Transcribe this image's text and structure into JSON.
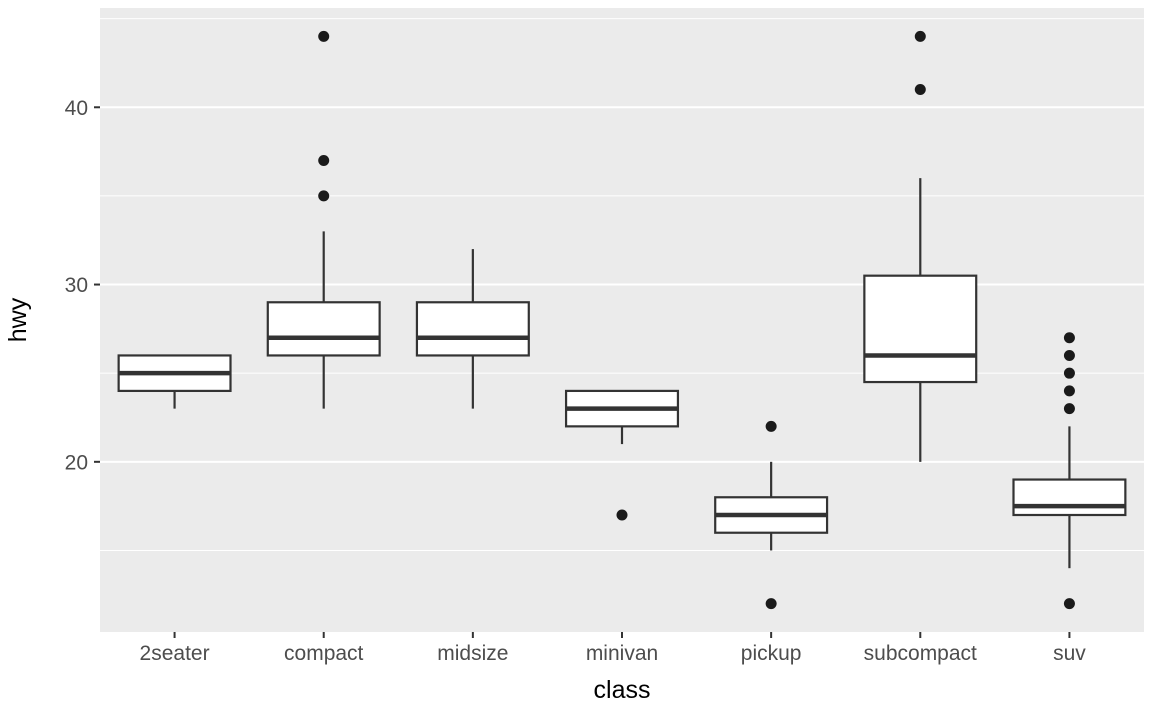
{
  "chart_data": {
    "type": "boxplot",
    "title": "",
    "xlabel": "class",
    "ylabel": "hwy",
    "categories": [
      "2seater",
      "compact",
      "midsize",
      "minivan",
      "pickup",
      "subcompact",
      "suv"
    ],
    "stats": [
      {
        "category": "2seater",
        "whisker_low": 23,
        "q1": 24,
        "median": 25,
        "q3": 26,
        "whisker_high": 26,
        "outliers": []
      },
      {
        "category": "compact",
        "whisker_low": 23,
        "q1": 26,
        "median": 27,
        "q3": 29,
        "whisker_high": 33,
        "outliers": [
          35,
          37,
          44
        ]
      },
      {
        "category": "midsize",
        "whisker_low": 23,
        "q1": 26,
        "median": 27,
        "q3": 29,
        "whisker_high": 32,
        "outliers": []
      },
      {
        "category": "minivan",
        "whisker_low": 21,
        "q1": 22,
        "median": 23,
        "q3": 24,
        "whisker_high": 24,
        "outliers": [
          17
        ]
      },
      {
        "category": "pickup",
        "whisker_low": 15,
        "q1": 16,
        "median": 17,
        "q3": 18,
        "whisker_high": 20,
        "outliers": [
          22,
          12
        ]
      },
      {
        "category": "subcompact",
        "whisker_low": 20,
        "q1": 24.5,
        "median": 26,
        "q3": 30.5,
        "whisker_high": 36,
        "outliers": [
          41,
          44
        ]
      },
      {
        "category": "suv",
        "whisker_low": 14,
        "q1": 17,
        "median": 17.5,
        "q3": 19,
        "whisker_high": 22,
        "outliers": [
          23,
          24,
          25,
          26,
          27,
          12
        ]
      }
    ],
    "ylim": [
      10.4,
      45.6
    ],
    "yticks": [
      20,
      30,
      40
    ],
    "minor_yticks": [
      15,
      25,
      35,
      45
    ],
    "grid": true,
    "legend": "none",
    "colors": {
      "panel_bg": "#ebebeb",
      "grid": "#ffffff",
      "box_fill": "#ffffff",
      "box_stroke": "#333333",
      "outlier": "#1a1a1a",
      "tick": "#333333",
      "axis_text": "#4d4d4d",
      "axis_title": "#000000"
    }
  }
}
